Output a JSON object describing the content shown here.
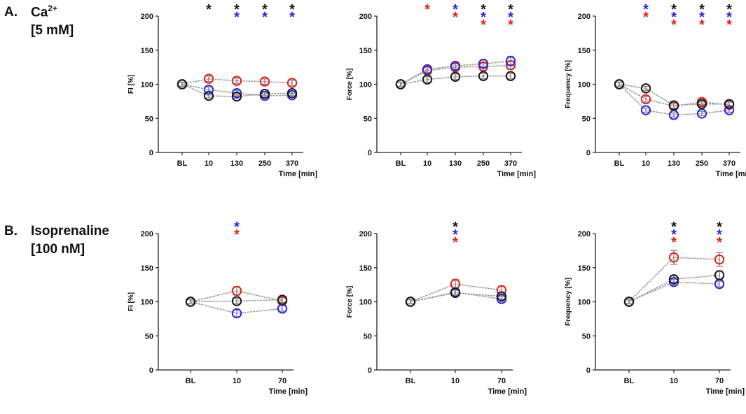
{
  "sections": [
    {
      "letter": "A.",
      "line1": "Ca",
      "sup": "2+",
      "line2": "[5 mM]"
    },
    {
      "letter": "B.",
      "line1": "Isoprenaline",
      "sup": "",
      "line2": "[100 nM]"
    }
  ],
  "colors": {
    "black": "#1a1a1a",
    "blue": "#2727e6",
    "red": "#e0231c",
    "axis": "#222222",
    "dotted": "#9a9a9a",
    "errbar": "#8a8a8a"
  },
  "chart_data": [
    {
      "type": "scatter",
      "panel": "A-FI",
      "ylabel": "FI [%]",
      "xlabel": "Time [min]",
      "categories": [
        "BL",
        "10",
        "130",
        "250",
        "370"
      ],
      "ylim": [
        0,
        200
      ],
      "yticks": [
        0,
        50,
        100,
        150,
        200
      ],
      "series": [
        {
          "name": "red",
          "color": "#e0231c",
          "values": [
            100,
            108,
            105,
            104,
            102
          ],
          "errors": [
            3,
            4,
            4,
            4,
            4
          ]
        },
        {
          "name": "blue",
          "color": "#2727e6",
          "values": [
            100,
            92,
            87,
            83,
            84
          ],
          "errors": [
            3,
            4,
            4,
            3,
            3
          ]
        },
        {
          "name": "black",
          "color": "#1a1a1a",
          "values": [
            100,
            83,
            82,
            86,
            87
          ],
          "errors": [
            3,
            3,
            3,
            3,
            3
          ]
        }
      ],
      "significance": [
        {
          "category": "10",
          "stars": [
            "black"
          ]
        },
        {
          "category": "130",
          "stars": [
            "black",
            "blue"
          ]
        },
        {
          "category": "250",
          "stars": [
            "black",
            "blue"
          ]
        },
        {
          "category": "370",
          "stars": [
            "black",
            "blue"
          ]
        }
      ]
    },
    {
      "type": "scatter",
      "panel": "A-Force",
      "ylabel": "Force [%]",
      "xlabel": "Time [min]",
      "categories": [
        "BL",
        "10",
        "130",
        "250",
        "370"
      ],
      "ylim": [
        0,
        200
      ],
      "yticks": [
        0,
        50,
        100,
        150,
        200
      ],
      "series": [
        {
          "name": "red",
          "color": "#e0231c",
          "values": [
            100,
            120,
            125,
            126,
            128
          ],
          "errors": [
            3,
            5,
            5,
            6,
            6
          ]
        },
        {
          "name": "blue",
          "color": "#2727e6",
          "values": [
            100,
            122,
            127,
            130,
            134
          ],
          "errors": [
            3,
            5,
            5,
            6,
            7
          ]
        },
        {
          "name": "black",
          "color": "#1a1a1a",
          "values": [
            100,
            107,
            111,
            112,
            112
          ],
          "errors": [
            3,
            4,
            4,
            4,
            4
          ]
        }
      ],
      "significance": [
        {
          "category": "10",
          "stars": [
            "red"
          ]
        },
        {
          "category": "130",
          "stars": [
            "blue",
            "red"
          ]
        },
        {
          "category": "250",
          "stars": [
            "black",
            "blue",
            "red"
          ]
        },
        {
          "category": "370",
          "stars": [
            "black",
            "blue",
            "red"
          ]
        }
      ]
    },
    {
      "type": "scatter",
      "panel": "A-Frequency",
      "ylabel": "Frequency [%]",
      "xlabel": "Time [min]",
      "categories": [
        "BL",
        "10",
        "130",
        "250",
        "370"
      ],
      "ylim": [
        0,
        200
      ],
      "yticks": [
        0,
        50,
        100,
        150,
        200
      ],
      "series": [
        {
          "name": "red",
          "color": "#e0231c",
          "values": [
            100,
            78,
            68,
            74,
            70
          ],
          "errors": [
            3,
            4,
            4,
            4,
            4
          ]
        },
        {
          "name": "blue",
          "color": "#2727e6",
          "values": [
            100,
            62,
            55,
            57,
            62
          ],
          "errors": [
            3,
            3,
            3,
            3,
            3
          ]
        },
        {
          "name": "black",
          "color": "#1a1a1a",
          "values": [
            100,
            94,
            69,
            71,
            71
          ],
          "errors": [
            3,
            3,
            4,
            4,
            4
          ]
        }
      ],
      "significance": [
        {
          "category": "10",
          "stars": [
            "blue",
            "red"
          ]
        },
        {
          "category": "130",
          "stars": [
            "black",
            "blue",
            "red"
          ]
        },
        {
          "category": "250",
          "stars": [
            "black",
            "blue",
            "red"
          ]
        },
        {
          "category": "370",
          "stars": [
            "black",
            "blue",
            "red"
          ]
        }
      ]
    },
    {
      "type": "scatter",
      "panel": "B-FI",
      "ylabel": "FI [%]",
      "xlabel": "Time [min]",
      "categories": [
        "BL",
        "10",
        "70"
      ],
      "ylim": [
        0,
        200
      ],
      "yticks": [
        0,
        50,
        100,
        150,
        200
      ],
      "series": [
        {
          "name": "red",
          "color": "#e0231c",
          "values": [
            100,
            116,
            101
          ],
          "errors": [
            3,
            6,
            5
          ]
        },
        {
          "name": "blue",
          "color": "#2727e6",
          "values": [
            100,
            83,
            90
          ],
          "errors": [
            3,
            5,
            4
          ]
        },
        {
          "name": "black",
          "color": "#1a1a1a",
          "values": [
            100,
            101,
            103
          ],
          "errors": [
            3,
            4,
            4
          ]
        }
      ],
      "significance": [
        {
          "category": "10",
          "stars": [
            "blue",
            "red"
          ]
        }
      ]
    },
    {
      "type": "scatter",
      "panel": "B-Force",
      "ylabel": "Force [%]",
      "xlabel": "Time [min]",
      "categories": [
        "BL",
        "10",
        "70"
      ],
      "ylim": [
        0,
        200
      ],
      "yticks": [
        0,
        50,
        100,
        150,
        200
      ],
      "series": [
        {
          "name": "red",
          "color": "#e0231c",
          "values": [
            100,
            126,
            117
          ],
          "errors": [
            3,
            7,
            6
          ]
        },
        {
          "name": "blue",
          "color": "#2727e6",
          "values": [
            100,
            114,
            104
          ],
          "errors": [
            3,
            4,
            4
          ]
        },
        {
          "name": "black",
          "color": "#1a1a1a",
          "values": [
            100,
            113,
            108
          ],
          "errors": [
            3,
            4,
            4
          ]
        }
      ],
      "significance": [
        {
          "category": "10",
          "stars": [
            "black",
            "blue",
            "red"
          ]
        }
      ]
    },
    {
      "type": "scatter",
      "panel": "B-Frequency",
      "ylabel": "Frequency [%]",
      "xlabel": "Time [min]",
      "categories": [
        "BL",
        "10",
        "70"
      ],
      "ylim": [
        0,
        200
      ],
      "yticks": [
        0,
        50,
        100,
        150,
        200
      ],
      "series": [
        {
          "name": "red",
          "color": "#e0231c",
          "values": [
            100,
            165,
            162
          ],
          "errors": [
            3,
            10,
            10
          ]
        },
        {
          "name": "blue",
          "color": "#2727e6",
          "values": [
            100,
            129,
            126
          ],
          "errors": [
            3,
            4,
            4
          ]
        },
        {
          "name": "black",
          "color": "#1a1a1a",
          "values": [
            100,
            133,
            139
          ],
          "errors": [
            3,
            5,
            6
          ]
        }
      ],
      "significance": [
        {
          "category": "10",
          "stars": [
            "black",
            "blue",
            "red"
          ]
        },
        {
          "category": "70",
          "stars": [
            "black",
            "blue",
            "red"
          ]
        }
      ]
    }
  ]
}
